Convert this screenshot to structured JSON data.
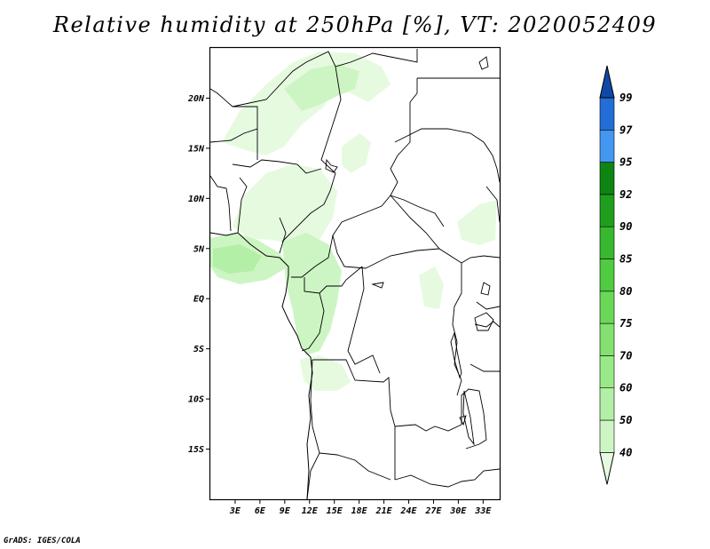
{
  "title": "Relative humidity at 250hPa [%], VT: 2020052409",
  "credit": "GrADS: IGES/COLA",
  "map": {
    "lon_range": [
      0,
      35
    ],
    "lat_range": [
      -20,
      25
    ],
    "lon_ticks": [
      3,
      6,
      9,
      12,
      15,
      18,
      21,
      24,
      27,
      30,
      33
    ],
    "lon_tick_labels": [
      "3E",
      "6E",
      "9E",
      "12E",
      "15E",
      "18E",
      "21E",
      "24E",
      "27E",
      "30E",
      "33E"
    ],
    "lat_ticks": [
      20,
      15,
      10,
      5,
      0,
      -5,
      -10,
      -15
    ],
    "lat_tick_labels": [
      "20N",
      "15N",
      "10N",
      "5N",
      "EQ",
      "5S",
      "10S",
      "15S"
    ]
  },
  "colorbar": {
    "levels": [
      "40",
      "50",
      "60",
      "70",
      "75",
      "80",
      "85",
      "90",
      "92",
      "95",
      "97",
      "99"
    ],
    "colors": [
      "#e6fae0",
      "#cdf5c3",
      "#b3efa6",
      "#9ae989",
      "#82e16f",
      "#69d857",
      "#50cb42",
      "#39b82f",
      "#1f9e1e",
      "#0e8412",
      "#4397f0",
      "#226ed6",
      "#1148a8"
    ]
  }
}
